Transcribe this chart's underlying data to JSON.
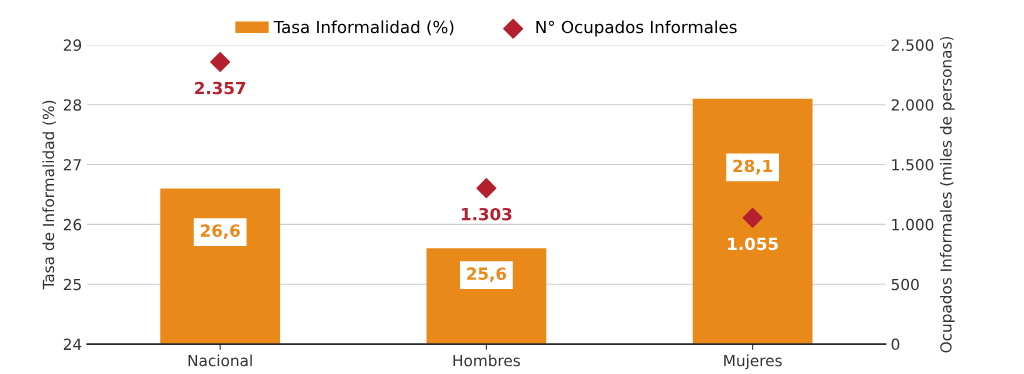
{
  "chart_data": {
    "type": "bar",
    "categories": [
      "Nacional",
      "Hombres",
      "Mujeres"
    ],
    "ylabel": "Tasa de Informalidad (%)",
    "y2label": "Ocupados Informales (miles de personas)",
    "ylim": [
      24,
      29
    ],
    "yticks": [
      24,
      25,
      26,
      27,
      28,
      29
    ],
    "y2lim": [
      0,
      2500
    ],
    "y2ticks": [
      0,
      {
        "value": 500,
        "label": "500"
      },
      {
        "value": 1000,
        "label": "1.000"
      },
      {
        "value": 1500,
        "label": "1.500"
      },
      {
        "value": 2000,
        "label": "2.000"
      },
      {
        "value": 2500,
        "label": "2.500"
      }
    ],
    "grid": "y",
    "legend": "top",
    "series": [
      {
        "name": "Tasa Informalidad (%)",
        "color": "#e8891a",
        "values": [
          26.6,
          25.6,
          28.1
        ],
        "value_labels": [
          "26,6",
          "25,6",
          "28,1"
        ]
      },
      {
        "name": "N° Ocupados Informales",
        "type": "scatter",
        "axis": "y2",
        "marker": "diamond",
        "color": "#b5202e",
        "values": [
          2357,
          1303,
          1055
        ],
        "value_labels": [
          "2.357",
          "1.303",
          "1.055"
        ]
      }
    ]
  }
}
